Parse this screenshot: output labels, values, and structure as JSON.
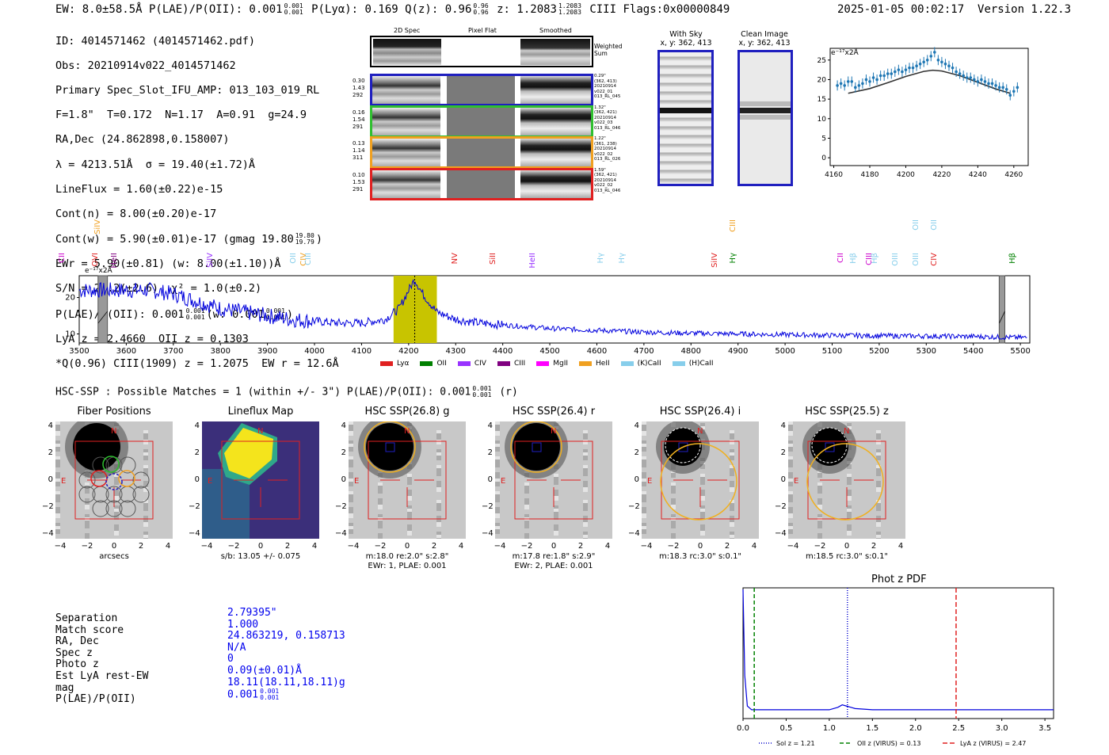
{
  "header": {
    "left_line": "EW: 8.0±58.5Å  P(LAE)/P(OII): 0.001",
    "plae_hi": "0.001",
    "plae_lo": "0.001",
    "plya": "P(Lyα): 0.169",
    "qz": "Q(z): 0.96",
    "qz_hi": "0.96",
    "qz_lo": "0.96",
    "z": "z: 1.2083",
    "z_hi": "1.2083",
    "z_lo": "1.2083",
    "ciii": "CIII",
    "flags": "Flags:0x00000849",
    "datetime": "2025-01-05 00:02:17",
    "version": "Version 1.22.3"
  },
  "info": {
    "l1": "ID: 4014571462 (4014571462.pdf)",
    "l2": "Obs: 20210914v022_4014571462",
    "l3": "Primary Spec_Slot_IFU_AMP: 013_103_019_RL",
    "l4": "F=1.8\"  T=0.172  N=1.17  A=0.91  g=24.9",
    "l5": "RA,Dec (24.862898,0.158007)",
    "l6": "λ = 4213.51Å  σ = 19.40(±1.72)Å",
    "l7": "LineFlux = 1.60(±0.22)e-15",
    "l8": "Cont(n) = 8.00(±0.20)e-17",
    "l9": "Cont(w) = 5.90(±0.01)e-17 (gmag 19.80",
    "l9_hi": "19.80",
    "l9_lo": "19.79",
    "l9_end": ")",
    "l10": "EWr = 5.90(±0.81) (w: 8.00(±1.10))Å",
    "l11": "S/N = 21.2(±2.6)  χ² = 1.0(±0.2)",
    "l12": "P(LAE)/P(OII): 0.001",
    "l12_hi": "0.001",
    "l12_lo": "0.001",
    "l12_mid": "(w: 0.001",
    "l12_hi2": "0.001",
    "l12_lo2": "0.001",
    "l12_end": ")",
    "l13": "LyA z = 2.4660  OII z = 0.1303",
    "l14": "*Q(0.96) CIII(1909) z = 1.2075  EW r = 12.6Å"
  },
  "cutouts": {
    "col_titles": [
      "2D Spec",
      "Pixel Flat",
      "Smoothed"
    ],
    "weighted": "Weighted\nSum",
    "rows": [
      {
        "left": [
          "0.30",
          "1.43",
          "292"
        ],
        "right": [
          "0.29\"",
          "(362, 413)",
          "20210914",
          "v022_01",
          "013_RL_045"
        ],
        "color": "#1f1fbf"
      },
      {
        "left": [
          "0.16",
          "1.54",
          "291"
        ],
        "right": [
          "1.32\"",
          "(362, 421)",
          "20210914",
          "v022_03",
          "013_RL_046"
        ],
        "color": "#2fbf2f"
      },
      {
        "left": [
          "0.13",
          "1.14",
          "311"
        ],
        "right": [
          "1.22\"",
          "(361, 238)",
          "20210914",
          "v022_02",
          "013_RL_026"
        ],
        "color": "#f0a020"
      },
      {
        "left": [
          "0.10",
          "1.53",
          "291"
        ],
        "right": [
          "1.59\"",
          "(362, 421)",
          "20210914",
          "v022_02",
          "013_RL_046"
        ],
        "color": "#e02020"
      }
    ]
  },
  "sky": {
    "with_sky_title": "With Sky",
    "with_sky_coords": "x, y: 362, 413",
    "clean_title": "Clean Image",
    "clean_coords": "x, y: 362, 413"
  },
  "zoom_plot": {
    "unit": "e⁻¹⁷x2Å",
    "yticks": [
      "0",
      "5",
      "10",
      "15",
      "20",
      "25"
    ],
    "xticks": [
      "4160",
      "4180",
      "4200",
      "4220",
      "4240",
      "4260"
    ]
  },
  "line_labels": {
    "top_row": [
      {
        "text": "SiIV",
        "w": 3540,
        "color": "#f0a020"
      },
      {
        "text": "CIII",
        "w": 4891,
        "color": "#f0a020"
      },
      {
        "text": "OII",
        "w": 5280,
        "color": "#87ceeb"
      },
      {
        "text": "OII",
        "w": 5318,
        "color": "#87ceeb"
      }
    ],
    "bottom_row": [
      {
        "text": "CII",
        "w": 3465,
        "color": "#cc00cc"
      },
      {
        "text": "OVI",
        "w": 3535,
        "color": "#e02020"
      },
      {
        "text": "HeII",
        "w": 3575,
        "color": "#800080"
      },
      {
        "text": "SiIV",
        "w": 3780,
        "color": "#9933ff"
      },
      {
        "text": "OII",
        "w": 3956,
        "color": "#87ceeb"
      },
      {
        "text": "CIV",
        "w": 3978,
        "color": "#f0a020"
      },
      {
        "text": "CIII",
        "w": 3989,
        "color": "#87ceeb"
      },
      {
        "text": "NV",
        "w": 4300,
        "color": "#e02020"
      },
      {
        "text": "SiII",
        "w": 4380,
        "color": "#e02020"
      },
      {
        "text": "HeII",
        "w": 4465,
        "color": "#9933ff"
      },
      {
        "text": "Hγ",
        "w": 4610,
        "color": "#87ceeb"
      },
      {
        "text": "Hγ",
        "w": 4655,
        "color": "#87ceeb"
      },
      {
        "text": "SiIV",
        "w": 4852,
        "color": "#e02020"
      },
      {
        "text": "Hγ",
        "w": 4891,
        "color": "#008000"
      },
      {
        "text": "CII",
        "w": 5120,
        "color": "#cc00cc"
      },
      {
        "text": "Hβ",
        "w": 5147,
        "color": "#87ceeb"
      },
      {
        "text": "CIII",
        "w": 5180,
        "color": "#cc00cc"
      },
      {
        "text": "Hβ",
        "w": 5192,
        "color": "#87ceeb"
      },
      {
        "text": "OIII",
        "w": 5236,
        "color": "#87ceeb"
      },
      {
        "text": "OIII",
        "w": 5280,
        "color": "#87ceeb"
      },
      {
        "text": "CIV",
        "w": 5318,
        "color": "#e02020"
      },
      {
        "text": "Hβ",
        "w": 5485,
        "color": "#008000"
      }
    ]
  },
  "spectrum": {
    "unit": "e⁻¹⁷x2Å",
    "yticks": [
      "10",
      "20"
    ],
    "xticks": [
      "3500",
      "3600",
      "3700",
      "3800",
      "3900",
      "4000",
      "4100",
      "4200",
      "4300",
      "4400",
      "4500",
      "4600",
      "4700",
      "4800",
      "4900",
      "5000",
      "5100",
      "5200",
      "5300",
      "5400",
      "5500"
    ],
    "legend": [
      {
        "label": "Lyα",
        "color": "#e02020"
      },
      {
        "label": "OII",
        "color": "#008000"
      },
      {
        "label": "CIV",
        "color": "#9933ff"
      },
      {
        "label": "CIII",
        "color": "#800080"
      },
      {
        "label": "MgII",
        "color": "#ff00ff"
      },
      {
        "label": "HeII",
        "color": "#f0a020"
      },
      {
        "label": "(K)CaII",
        "color": "#87ceeb"
      },
      {
        "label": "(H)CaII",
        "color": "#87ceeb"
      }
    ]
  },
  "hsc_line": {
    "text": "HSC-SSP : Possible Matches = 1 (within +/- 3\")  P(LAE)/P(OII): 0.001",
    "hi": "0.001",
    "lo": "0.001",
    "end": "(r)"
  },
  "stamps": [
    {
      "title": "Fiber Positions",
      "caption": [
        "arcsecs"
      ]
    },
    {
      "title": "Lineflux Map",
      "caption": [
        "s/b: 13.05 +/- 0.075"
      ]
    },
    {
      "title": "HSC SSP(26.8) g",
      "caption": [
        "m:18.0  re:2.0\"  s:2.8\"",
        "EWr: 1, PLAE: 0.001"
      ]
    },
    {
      "title": "HSC SSP(26.4) r",
      "caption": [
        "m:17.8  re:1.8\"  s:2.9\"",
        "EWr: 2, PLAE: 0.001"
      ]
    },
    {
      "title": "HSC SSP(26.4) i",
      "caption": [
        "m:18.3 rc:3.0\"  s:0.1\""
      ]
    },
    {
      "title": "HSC SSP(25.5) z",
      "caption": [
        "m:18.5 rc:3.0\"  s:0.1\""
      ]
    }
  ],
  "stamp_ticks": [
    "−4",
    "−2",
    "0",
    "2",
    "4"
  ],
  "stamp_marks": {
    "north": "N",
    "east": "E"
  },
  "match_table": {
    "labels": [
      "Separation",
      "Match score",
      "RA, Dec",
      "Spec z",
      "Photo z",
      "Est LyA rest-EW",
      "mag",
      "P(LAE)/P(OII)"
    ],
    "values": [
      "2.79395\"",
      "1.000",
      "24.863219, 0.158713",
      "N/A",
      "0",
      "0.09(±0.01)Å",
      "18.11(18.11,18.11)g",
      "0.001"
    ],
    "plae_hi": "0.001",
    "plae_lo": "0.001"
  },
  "pdf_plot": {
    "title": "Phot z PDF",
    "xticks": [
      "0.0",
      "0.5",
      "1.0",
      "1.5",
      "2.0",
      "2.5",
      "3.0",
      "3.5"
    ],
    "legend": [
      {
        "label": "Sol z = 1.21",
        "color": "#0000cc"
      },
      {
        "label": "OII z (VIRUS) = 0.13",
        "color": "#008000"
      },
      {
        "label": "LyA z (VIRUS) = 2.47",
        "color": "#e02020"
      }
    ]
  },
  "chart_data": [
    {
      "type": "line",
      "title": "",
      "xlabel": "",
      "ylabel": "e⁻¹⁷x2Å",
      "xlim": [
        3500,
        5520
      ],
      "ylim": [
        7.5,
        26
      ],
      "grid": false,
      "series": [
        {
          "x": [
            3500,
            3550,
            3600,
            3650,
            3700,
            3750,
            3800,
            3850,
            3900,
            3950,
            4000,
            4050,
            4100,
            4150,
            4180,
            4200,
            4213,
            4230,
            4260,
            4300,
            4350,
            4400,
            4450,
            4500,
            4600,
            4700,
            4800,
            4900,
            5000,
            5100,
            5200,
            5300,
            5400,
            5500
          ],
          "values": [
            22,
            22,
            22,
            22,
            21,
            19,
            17,
            16,
            15,
            14,
            13.5,
            13,
            13,
            14,
            17,
            22,
            25,
            21,
            16,
            14,
            13,
            12.5,
            12,
            11.5,
            11,
            10.5,
            10.2,
            10,
            9.8,
            9.6,
            9.5,
            9.4,
            9.3,
            9
          ]
        }
      ],
      "highlight_band": [
        4168,
        4260
      ],
      "masked_bands": [
        [
          3540,
          3560
        ],
        [
          5455,
          5467
        ]
      ],
      "marker_x": 4213
    },
    {
      "type": "scatter",
      "title": "",
      "xlabel": "",
      "ylabel": "e⁻¹⁷x2Å",
      "xlim": [
        4158,
        4268
      ],
      "ylim": [
        -2,
        28
      ],
      "series": [
        {
          "x": [
            4162,
            4164,
            4166,
            4168,
            4170,
            4172,
            4174,
            4176,
            4178,
            4180,
            4182,
            4184,
            4186,
            4188,
            4190,
            4192,
            4194,
            4196,
            4198,
            4200,
            4202,
            4204,
            4206,
            4208,
            4210,
            4212,
            4214,
            4216,
            4218,
            4220,
            4222,
            4224,
            4226,
            4228,
            4230,
            4232,
            4234,
            4236,
            4238,
            4240,
            4242,
            4244,
            4246,
            4248,
            4250,
            4252,
            4254,
            4256,
            4258,
            4260,
            4262
          ],
          "values": [
            18.5,
            19,
            18.5,
            19.5,
            19.5,
            18,
            18.5,
            19,
            20,
            19.5,
            20.5,
            20,
            21,
            21,
            21.5,
            21.5,
            22,
            22.5,
            22,
            22.5,
            23,
            23,
            23.5,
            24,
            24.5,
            25,
            26,
            27,
            25,
            24.5,
            24,
            23.5,
            23,
            22,
            21.5,
            21,
            20.5,
            20.5,
            20,
            19.5,
            20,
            19.5,
            19,
            19,
            18.5,
            18,
            18,
            17.5,
            16,
            17,
            18
          ],
          "error": 1.3
        },
        {
          "x": [
            4168,
            4180,
            4190,
            4200,
            4210,
            4215,
            4220,
            4230,
            4240,
            4250,
            4258
          ],
          "values": [
            16.5,
            17.7,
            19.2,
            20.8,
            22.1,
            22.4,
            22.2,
            21.0,
            19.3,
            17.6,
            16.5
          ]
        }
      ]
    },
    {
      "type": "line",
      "title": "Phot z PDF",
      "xlabel": "",
      "ylabel": "",
      "xlim": [
        0,
        3.6
      ],
      "series": [
        {
          "x": [
            0,
            0.02,
            0.05,
            0.1,
            0.5,
            1.0,
            1.1,
            1.15,
            1.2,
            1.25,
            1.3,
            1.5,
            2.0,
            3.0,
            3.6
          ],
          "values": [
            1.0,
            0.3,
            0.05,
            0.02,
            0.02,
            0.02,
            0.04,
            0.06,
            0.05,
            0.04,
            0.03,
            0.02,
            0.02,
            0.02,
            0.02
          ]
        }
      ],
      "vlines": [
        {
          "x": 1.21,
          "label": "Sol z = 1.21"
        },
        {
          "x": 0.13,
          "label": "OII z (VIRUS) = 0.13"
        },
        {
          "x": 2.47,
          "label": "LyA z (VIRUS) = 2.47"
        }
      ]
    }
  ]
}
